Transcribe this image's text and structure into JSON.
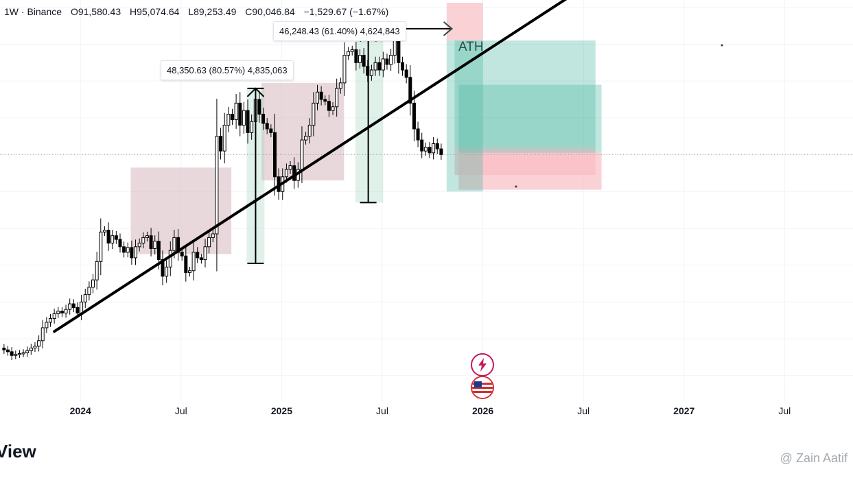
{
  "header": {
    "interval_exchange": "1W · Binance",
    "open": "O91,580.43",
    "high": "H95,074.64",
    "low": "L89,253.49",
    "close": "C90,046.84",
    "change": "−1,529.67 (−1.67%)"
  },
  "annotations": {
    "measure_1": "48,350.63 (80.57%) 4,835,063",
    "measure_2": "46,248.43 (61.40%) 4,624,843",
    "ath": "ATH"
  },
  "footer": {
    "brand_partial": "View",
    "watermark": "@ Zain Aatif"
  },
  "colors": {
    "up": "#089981",
    "down": "#f23645",
    "candle_drawn": "#000000",
    "range_box": "#d7b8bd",
    "long_profit": "#4db6a2",
    "long_loss": "#f8bdc3"
  },
  "chart_data": {
    "type": "candlestick",
    "title": "",
    "xlabel": "",
    "ylabel": "",
    "x_ticks": [
      "2024",
      "Jul",
      "2025",
      "Jul",
      "2026",
      "Jul",
      "2027",
      "Jul"
    ],
    "x_tick_years": [
      2024.0,
      2024.5,
      2025.0,
      2025.5,
      2026.0,
      2026.5,
      2027.0,
      2027.5
    ],
    "xlim": [
      2023.6,
      2027.84
    ],
    "ylim": [
      24000,
      132000
    ],
    "last_close": 90046.84,
    "series": [
      {
        "t_start": 2023.62,
        "t_step": 0.01923,
        "close": [
          37000,
          36500,
          35500,
          35800,
          36000,
          36200,
          36800,
          37500,
          38000,
          39500,
          43000,
          44500,
          45500,
          46800,
          47500,
          47000,
          48000,
          49500,
          48500,
          47000,
          50000,
          52000,
          54000,
          56000,
          61000,
          69000,
          69500,
          66000,
          68000,
          67000,
          65000,
          63500,
          64800,
          62000,
          65000,
          66000,
          67500,
          68000,
          64500,
          66500,
          61500,
          57000,
          59500,
          64000,
          67500,
          63500,
          62500,
          58000,
          58500,
          63500,
          62000,
          61500,
          65000,
          67500,
          68500,
          95000,
          91000,
          98000,
          101000,
          99500,
          104000,
          98000,
          102000,
          96000,
          99000,
          105000,
          101000,
          98500,
          97000,
          96000,
          84000,
          80000,
          84000,
          86000,
          87000,
          83000,
          86000,
          94000,
          95000,
          98000,
          104000,
          107000,
          105000,
          104500,
          102000,
          103000,
          108000,
          109500,
          117000,
          118000,
          118500,
          115000,
          117000,
          114000,
          111500,
          113000,
          115000,
          113000,
          116000,
          114500,
          117000,
          121000,
          115000,
          113000,
          111000,
          104000,
          97000,
          94000,
          91000,
          92000,
          90500,
          93000,
          91580,
          90046.84
        ]
      }
    ],
    "measures": [
      {
        "from_year": 2024.85,
        "from_price": 60500,
        "to_price": 108000,
        "label_ref": "measure_1"
      },
      {
        "from_year": 2025.41,
        "from_price": 77000,
        "to_price": 123000,
        "label_ref": "measure_2"
      }
    ],
    "trendline": {
      "from": [
        2023.87,
        42000
      ],
      "to": [
        2026.42,
        132500
      ]
    },
    "ath_line": {
      "from_year": 2025.54,
      "to_year": 2025.86,
      "price": 124200
    },
    "range_boxes": [
      {
        "x": [
          2024.25,
          2024.75
        ],
        "y": [
          63000,
          86500
        ]
      },
      {
        "x": [
          2024.9,
          2025.31
        ],
        "y": [
          83000,
          109500
        ]
      }
    ],
    "long_position": {
      "x": [
        2025.88,
        2026.59
      ],
      "entry": 90500,
      "target": 109000,
      "stop": 80500
    },
    "long_position_2": {
      "x": [
        2025.86,
        2026.56
      ],
      "entry": 92000,
      "target": 121000,
      "stop": 84500
    }
  }
}
